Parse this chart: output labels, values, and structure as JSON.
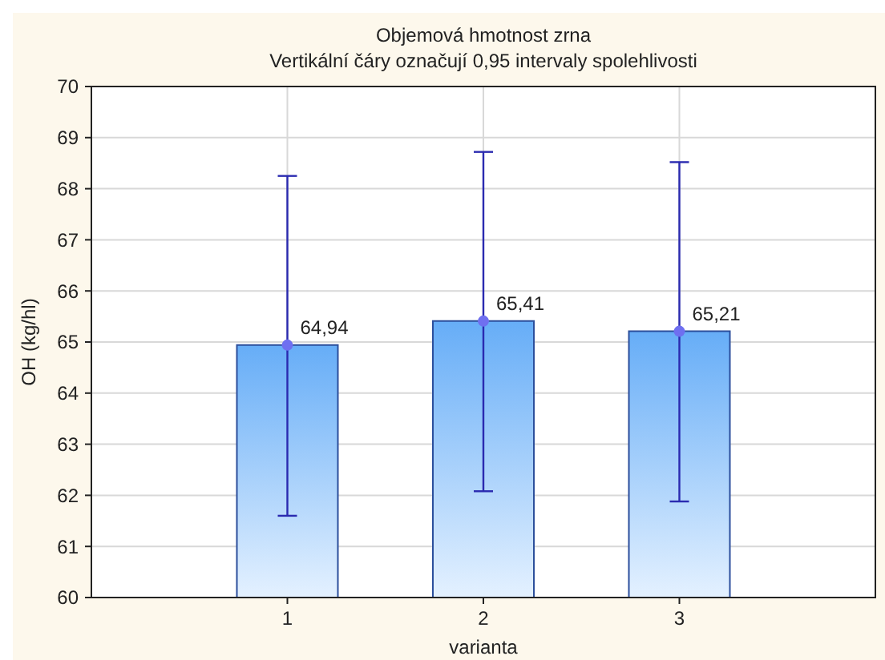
{
  "chart_data": {
    "type": "bar",
    "title": "Objemová hmotnost zrna",
    "subtitle": "Vertikální čáry označují 0,95 intervaly spolehlivosti",
    "xlabel": "varianta",
    "ylabel": "OH (kg/hl)",
    "categories": [
      "1",
      "2",
      "3"
    ],
    "series": [
      {
        "color": "#66adf7",
        "values": [
          64.94,
          65.41,
          65.21
        ],
        "value_labels": [
          "64,94",
          "65,41",
          "65,21"
        ],
        "errors": [
          [
            61.6,
            68.25
          ],
          [
            62.08,
            68.72
          ],
          [
            61.88,
            68.52
          ]
        ]
      },
      {
        "type": "scatter",
        "color": "#6f6ff0",
        "x": [
          "1",
          "2",
          "3"
        ],
        "values": [
          64.94,
          65.41,
          65.21
        ],
        "marker": "circle"
      }
    ],
    "ylim": [
      60,
      70
    ],
    "yticks": [
      60,
      61,
      62,
      63,
      64,
      65,
      66,
      67,
      68,
      69,
      70
    ],
    "grid": true
  }
}
